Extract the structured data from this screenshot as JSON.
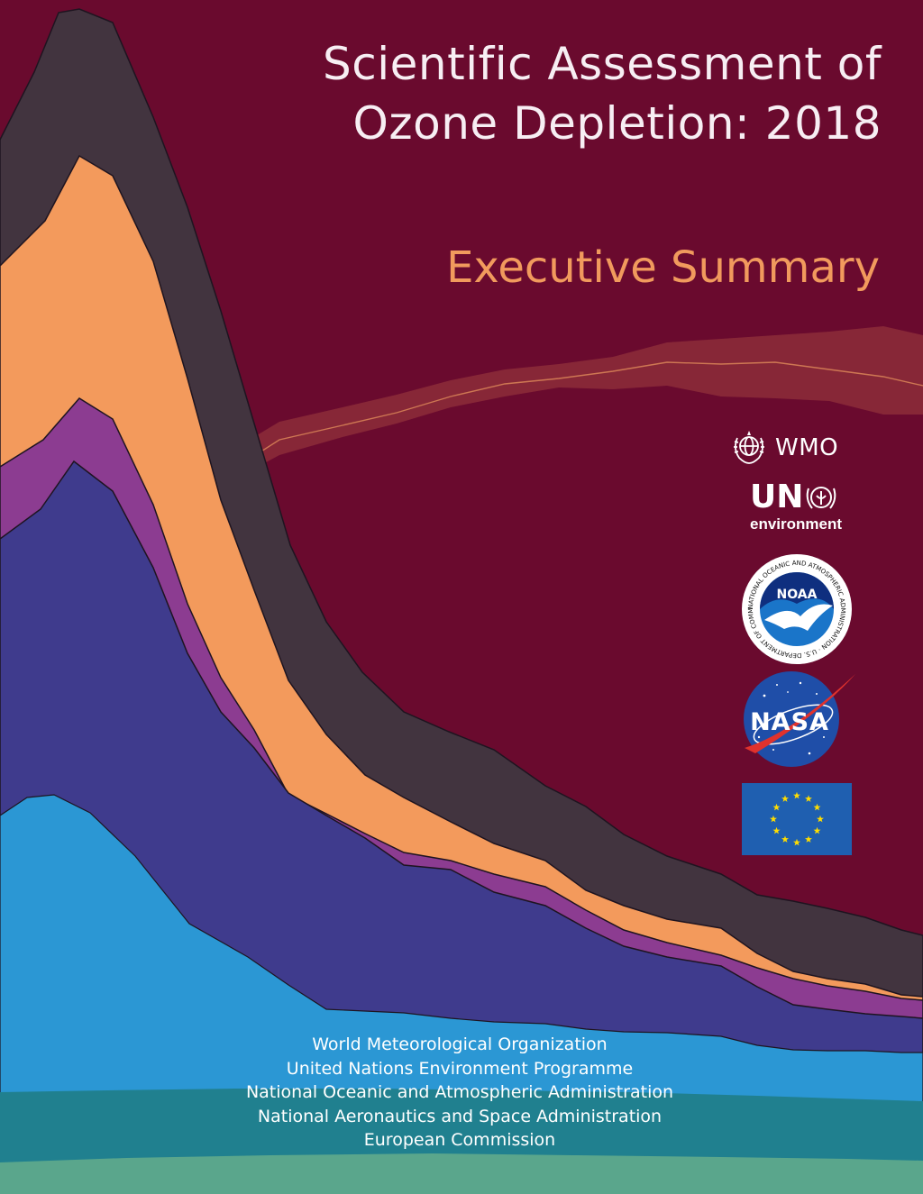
{
  "title": {
    "line1": "Scientific Assessment of",
    "line2": "Ozone Depletion: 2018"
  },
  "subtitle": "Executive Summary",
  "logos": {
    "wmo": "WMO",
    "un": "UN",
    "un_sub": "environment",
    "noaa": "NOAA",
    "noaa_ring": "NATIONAL OCEANIC AND ATMOSPHERIC ADMINISTRATION · U.S. DEPARTMENT OF COMMERCE ·",
    "nasa": "NASA"
  },
  "agencies": [
    "World Meteorological Organization",
    "United Nations Environment Programme",
    "National Oceanic and Atmospheric Administration",
    "National Aeronautics and Space Administration",
    "European Commission"
  ],
  "colors": {
    "background": "#6a0a2e",
    "title": "#f7eef3",
    "subtitle": "#f19a5d",
    "layer_dark": "#42343f",
    "layer_orange": "#f39a5c",
    "layer_purple": "#8c3c91",
    "layer_indigo": "#3f3b8d",
    "layer_blue": "#2b97d4",
    "layer_teal": "#20808f",
    "layer_green": "#5aa68c",
    "ribbon": "#9b3a3e",
    "eu_blue": "#1f5fb0",
    "eu_star": "#ffdd00"
  },
  "icons": [
    "wmo-emblem-icon",
    "un-environment-emblem-icon",
    "noaa-emblem-icon",
    "nasa-meatball-icon",
    "eu-flag-icon"
  ]
}
